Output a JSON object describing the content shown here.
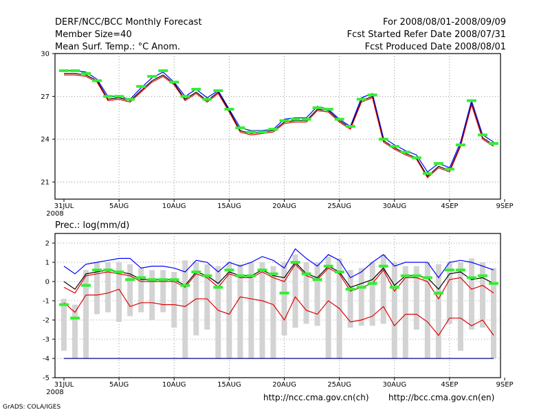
{
  "header": {
    "title": "DERF/NCC/BCC Monthly Forecast",
    "member_size": "Member Size=40",
    "variable1": "Mean Surf. Temp.: °C Anom.",
    "period": "For 2008/08/01-2008/09/09",
    "start_date": "Fcst Started Refer Date 2008/07/31",
    "produced_date": "Fcst Produced Date 2008/08/01"
  },
  "footer": {
    "url_ncc": "http://ncc.cma.gov.cn(ch)",
    "url_bcc": "http://bcc.cma.gov.cn(en)",
    "credit": "GrADS: COLA/IGES"
  },
  "chart_data": [
    {
      "type": "line",
      "title": "Mean Surf. Temp.: °C Anom.",
      "x_tick_labels": [
        "31JUL",
        "5AUG",
        "10AUG",
        "15AUG",
        "20AUG",
        "25AUG",
        "30AUG",
        "4SEP",
        "9SEP"
      ],
      "x_tick_days": [
        0,
        5,
        10,
        15,
        20,
        25,
        30,
        35,
        40
      ],
      "x_start_year": "2008",
      "ylim": [
        19.8,
        30
      ],
      "y_ticks": [
        21,
        24,
        27,
        30
      ],
      "grid": true,
      "series": [
        {
          "name": "upper",
          "color": "#0000ff",
          "values": [
            28.8,
            28.8,
            28.7,
            28.2,
            27.0,
            27.0,
            26.8,
            27.6,
            28.3,
            28.7,
            28.0,
            27.0,
            27.5,
            26.9,
            27.4,
            26.1,
            24.8,
            24.6,
            24.6,
            24.7,
            25.4,
            25.5,
            25.5,
            26.3,
            26.1,
            25.4,
            24.9,
            26.9,
            27.2,
            24.1,
            23.6,
            23.2,
            22.9,
            21.7,
            22.3,
            22.0,
            23.8,
            26.7,
            24.3,
            23.8
          ]
        },
        {
          "name": "ensemble-mean",
          "color": "#000000",
          "values": [
            28.6,
            28.6,
            28.5,
            28.1,
            26.8,
            26.9,
            26.7,
            27.4,
            28.1,
            28.5,
            27.9,
            26.8,
            27.3,
            26.7,
            27.3,
            26.0,
            24.6,
            24.4,
            24.5,
            24.6,
            25.2,
            25.3,
            25.3,
            26.1,
            26.0,
            25.3,
            24.8,
            26.7,
            27.0,
            23.9,
            23.4,
            23.0,
            22.7,
            21.4,
            22.1,
            21.8,
            23.6,
            26.5,
            24.1,
            23.6
          ]
        },
        {
          "name": "lower",
          "color": "#e00000",
          "values": [
            28.5,
            28.5,
            28.4,
            28.0,
            26.7,
            26.8,
            26.6,
            27.3,
            28.0,
            28.4,
            27.8,
            26.7,
            27.2,
            26.6,
            27.2,
            25.9,
            24.5,
            24.3,
            24.4,
            24.5,
            25.1,
            25.2,
            25.2,
            26.0,
            25.9,
            25.2,
            24.7,
            26.6,
            26.9,
            23.8,
            23.3,
            22.9,
            22.6,
            21.3,
            22.0,
            21.7,
            23.5,
            26.4,
            24.0,
            23.5
          ]
        },
        {
          "name": "observed",
          "color": "#33ee33",
          "values": [
            28.8,
            28.8,
            28.6,
            28.1,
            27.0,
            27.0,
            26.8,
            27.7,
            28.4,
            28.8,
            28.0,
            27.0,
            27.5,
            26.8,
            27.4,
            26.1,
            24.8,
            24.5,
            24.5,
            24.7,
            25.3,
            25.4,
            25.4,
            26.2,
            26.1,
            25.4,
            24.9,
            26.8,
            27.1,
            24.0,
            23.5,
            23.1,
            22.7,
            21.6,
            22.3,
            21.9,
            23.6,
            26.7,
            24.3,
            23.7
          ]
        }
      ]
    },
    {
      "type": "line",
      "title": "Prec.: log(mm/d)",
      "x_tick_labels": [
        "31JUL",
        "5AUG",
        "10AUG",
        "15AUG",
        "20AUG",
        "25AUG",
        "30AUG",
        "4SEP",
        "9SEP"
      ],
      "x_tick_days": [
        0,
        5,
        10,
        15,
        20,
        25,
        30,
        35,
        40
      ],
      "x_start_year": "2008",
      "ylim": [
        -5,
        2.5
      ],
      "y_ticks": [
        -5,
        -4,
        -3,
        -2,
        -1,
        0,
        1,
        2
      ],
      "grid": true,
      "baseline": -4,
      "bars_low": [
        -3.6,
        -4.0,
        -4.0,
        -1.7,
        -1.6,
        -2.1,
        -1.8,
        -1.6,
        -2.0,
        -1.6,
        -2.4,
        -4.0,
        -2.8,
        -2.5,
        -4.0,
        -4.0,
        -4.0,
        -4.0,
        -4.0,
        -4.0,
        -2.8,
        -2.4,
        -2.2,
        -2.3,
        -4.0,
        -4.0,
        -2.4,
        -2.3,
        -2.3,
        -2.2,
        -4.0,
        -4.0,
        -2.5,
        -4.0,
        -4.0,
        -2.2,
        -3.6,
        -2.5,
        -2.4,
        -4.0
      ],
      "bars_high": [
        -0.9,
        -1.2,
        0.6,
        1.0,
        1.0,
        1.0,
        0.9,
        0.7,
        0.6,
        0.6,
        0.5,
        1.1,
        1.0,
        0.9,
        0.8,
        1.0,
        0.9,
        1.0,
        1.0,
        0.8,
        1.0,
        1.4,
        1.0,
        1.0,
        1.3,
        1.2,
        0.6,
        0.7,
        1.0,
        1.4,
        1.0,
        0.8,
        0.8,
        1.0,
        0.9,
        1.0,
        1.0,
        1.2,
        1.0,
        0.7
      ],
      "series": [
        {
          "name": "upper",
          "color": "#0000ff",
          "values": [
            0.8,
            0.4,
            0.9,
            1.0,
            1.1,
            1.2,
            1.2,
            0.7,
            0.8,
            0.8,
            0.7,
            0.5,
            1.1,
            1.0,
            0.5,
            1.0,
            0.8,
            1.0,
            1.3,
            1.1,
            0.7,
            1.7,
            1.2,
            0.8,
            1.4,
            1.1,
            0.2,
            0.5,
            1.0,
            1.4,
            0.8,
            1.0,
            1.0,
            1.0,
            0.2,
            1.0,
            1.1,
            1.0,
            0.8,
            0.6
          ]
        },
        {
          "name": "ensemble-mean",
          "color": "#000000",
          "values": [
            0.0,
            -0.4,
            0.4,
            0.5,
            0.6,
            0.5,
            0.4,
            0.1,
            0.1,
            0.1,
            0.1,
            -0.2,
            0.5,
            0.3,
            -0.1,
            0.5,
            0.3,
            0.3,
            0.6,
            0.3,
            0.2,
            1.0,
            0.4,
            0.2,
            0.8,
            0.5,
            -0.3,
            -0.1,
            0.1,
            0.7,
            -0.2,
            0.3,
            0.3,
            0.2,
            -0.4,
            0.4,
            0.5,
            0.1,
            0.2,
            -0.1
          ]
        },
        {
          "name": "lower",
          "color": "#e00000",
          "values": [
            -1.1,
            -1.6,
            -0.7,
            -0.7,
            -0.6,
            -0.4,
            -1.3,
            -1.1,
            -1.1,
            -1.2,
            -1.2,
            -1.3,
            -0.9,
            -0.9,
            -1.5,
            -1.7,
            -0.8,
            -0.9,
            -1.0,
            -1.2,
            -2.0,
            -0.8,
            -1.5,
            -1.7,
            -1.0,
            -1.4,
            -2.1,
            -2.0,
            -1.8,
            -1.3,
            -2.3,
            -1.7,
            -1.7,
            -2.1,
            -2.8,
            -1.9,
            -1.9,
            -2.3,
            -2.0,
            -2.8
          ]
        },
        {
          "name": "ensemble-mean-red",
          "color": "#e00000",
          "values": [
            -0.3,
            -0.6,
            0.3,
            0.4,
            0.5,
            0.4,
            0.3,
            0.0,
            0.0,
            0.0,
            0.0,
            -0.3,
            0.4,
            0.2,
            -0.3,
            0.4,
            0.2,
            0.2,
            0.5,
            0.2,
            0.0,
            0.9,
            0.3,
            0.1,
            0.7,
            0.4,
            -0.5,
            -0.3,
            -0.1,
            0.6,
            -0.5,
            0.2,
            0.2,
            0.0,
            -0.9,
            0.1,
            0.2,
            -0.4,
            -0.2,
            -0.6
          ]
        },
        {
          "name": "observed",
          "color": "#33ee33",
          "values": [
            -1.2,
            -1.9,
            -0.2,
            0.6,
            0.6,
            0.5,
            0.1,
            0.2,
            0.1,
            0.1,
            0.1,
            -0.2,
            0.5,
            0.3,
            -0.3,
            0.6,
            0.3,
            0.3,
            0.6,
            0.4,
            -0.6,
            1.0,
            0.4,
            0.1,
            0.8,
            0.5,
            -0.4,
            -0.3,
            -0.1,
            0.8,
            -0.3,
            0.3,
            0.3,
            0.2,
            -0.6,
            0.6,
            0.6,
            0.2,
            0.3,
            -0.1
          ]
        }
      ]
    }
  ]
}
